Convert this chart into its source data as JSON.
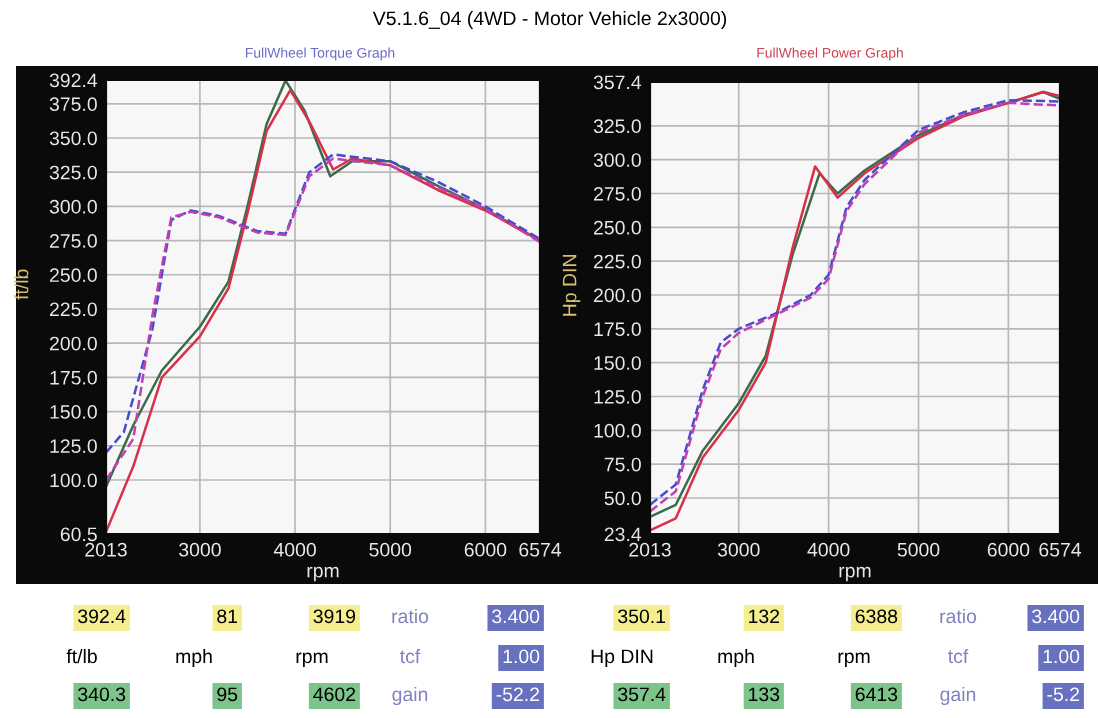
{
  "chart_data": [
    {
      "type": "line",
      "title": "V5.1.6_04 (4WD - Motor Vehicle 2x3000)",
      "subtitle": "FullWheel Torque Graph",
      "xlabel": "rpm",
      "ylabel": "ft/lb",
      "xlim": [
        2013,
        6574
      ],
      "xticks": [
        2013,
        3000,
        4000,
        5000,
        6000,
        6574
      ],
      "ylim": [
        60.5,
        392.4
      ],
      "yticks": [
        60.5,
        {
          "value": 100,
          "label": "100.0"
        },
        {
          "value": 125,
          "label": "125.0"
        },
        {
          "value": 150,
          "label": "150.0"
        },
        {
          "value": 175,
          "label": "175.0"
        },
        {
          "value": 200,
          "label": "200.0"
        },
        {
          "value": 225,
          "label": "225.0"
        },
        {
          "value": 250,
          "label": "250.0"
        },
        {
          "value": 275,
          "label": "275.0"
        },
        {
          "value": 300,
          "label": "300.0"
        },
        {
          "value": 325,
          "label": "325.0"
        },
        {
          "value": 350,
          "label": "350.0"
        },
        {
          "value": 375,
          "label": "375.0"
        },
        392.4
      ],
      "grid": true,
      "legend": false,
      "series": [
        {
          "color": "#3a6b4a",
          "line_style": "solid",
          "x": [
            2013,
            2300,
            2600,
            3000,
            3300,
            3500,
            3700,
            3900,
            4100,
            4370,
            4600,
            5000,
            5500,
            6000,
            6574
          ],
          "values": [
            95,
            140,
            180,
            212,
            245,
            300,
            360,
            392,
            370,
            322,
            333,
            333,
            315,
            298,
            275
          ]
        },
        {
          "color": "#d8304a",
          "line_style": "solid",
          "x": [
            2013,
            2300,
            2600,
            3000,
            3300,
            3500,
            3700,
            3950,
            4150,
            4400,
            4600,
            5000,
            5500,
            6000,
            6574
          ],
          "values": [
            62,
            110,
            175,
            205,
            240,
            295,
            355,
            385,
            362,
            327,
            335,
            330,
            312,
            297,
            275
          ]
        },
        {
          "color": "#4a4ad0",
          "line_style": "dashed",
          "x": [
            2013,
            2200,
            2500,
            2700,
            2900,
            3200,
            3600,
            3900,
            4150,
            4400,
            5000,
            5500,
            6000,
            6574
          ],
          "values": [
            120,
            135,
            210,
            290,
            297,
            293,
            282,
            280,
            325,
            338,
            333,
            318,
            300,
            276
          ]
        },
        {
          "color": "#c040b0",
          "line_style": "dashed",
          "x": [
            2013,
            2300,
            2500,
            2700,
            2900,
            3200,
            3600,
            3900,
            4150,
            4400,
            5000,
            5500,
            6000,
            6574
          ],
          "values": [
            100,
            130,
            220,
            292,
            296,
            292,
            281,
            279,
            322,
            335,
            330,
            314,
            298,
            274
          ]
        }
      ],
      "annotations": [
        "392.4",
        "81",
        "3919",
        "ratio",
        "3.400",
        "ft/lb",
        "mph",
        "rpm",
        "tcf",
        "1.00",
        "340.3",
        "95",
        "4602",
        "gain",
        "-52.2"
      ]
    },
    {
      "type": "line",
      "subtitle": "FullWheel Power Graph",
      "xlabel": "rpm",
      "ylabel": "Hp DIN",
      "xlim": [
        2013,
        6574
      ],
      "xticks": [
        2013,
        3000,
        4000,
        5000,
        6000,
        6574
      ],
      "ylim": [
        23.4,
        357.4
      ],
      "yticks": [
        23.4,
        {
          "value": 50,
          "label": "50.0"
        },
        {
          "value": 75,
          "label": "75.0"
        },
        {
          "value": 100,
          "label": "100.0"
        },
        {
          "value": 125,
          "label": "125.0"
        },
        {
          "value": 150,
          "label": "150.0"
        },
        {
          "value": 175,
          "label": "175.0"
        },
        {
          "value": 200,
          "label": "200.0"
        },
        {
          "value": 225,
          "label": "225.0"
        },
        {
          "value": 250,
          "label": "250.0"
        },
        {
          "value": 275,
          "label": "275.0"
        },
        {
          "value": 300,
          "label": "300.0"
        },
        {
          "value": 325,
          "label": "325.0"
        },
        357.4
      ],
      "grid": true,
      "legend": false,
      "series": [
        {
          "color": "#3a6b4a",
          "line_style": "solid",
          "x": [
            2013,
            2300,
            2600,
            3000,
            3300,
            3600,
            3900,
            4100,
            4400,
            5000,
            5500,
            6000,
            6388,
            6574
          ],
          "values": [
            36,
            45,
            85,
            120,
            155,
            230,
            290,
            275,
            292,
            318,
            333,
            342,
            350,
            345
          ]
        },
        {
          "color": "#d8304a",
          "line_style": "solid",
          "x": [
            2013,
            2300,
            2600,
            3000,
            3300,
            3600,
            3850,
            4100,
            4400,
            5000,
            5500,
            6000,
            6388,
            6574
          ],
          "values": [
            26,
            35,
            80,
            115,
            150,
            235,
            295,
            272,
            290,
            316,
            332,
            342,
            350,
            347
          ]
        },
        {
          "color": "#4a4ad0",
          "line_style": "dashed",
          "x": [
            2013,
            2300,
            2600,
            2800,
            3000,
            3400,
            3800,
            4000,
            4200,
            4400,
            5000,
            5500,
            6000,
            6574
          ],
          "values": [
            45,
            60,
            130,
            165,
            175,
            186,
            200,
            215,
            265,
            285,
            322,
            335,
            344,
            343
          ]
        },
        {
          "color": "#c040b0",
          "line_style": "dashed",
          "x": [
            2013,
            2300,
            2600,
            2800,
            3000,
            3400,
            3800,
            4000,
            4200,
            4400,
            5000,
            5500,
            6000,
            6574
          ],
          "values": [
            40,
            55,
            125,
            160,
            172,
            185,
            198,
            212,
            262,
            282,
            320,
            333,
            342,
            340
          ]
        }
      ],
      "annotations": [
        "350.1",
        "132",
        "6388",
        "ratio",
        "3.400",
        "Hp DIN",
        "mph",
        "rpm",
        "tcf",
        "1.00",
        "357.4",
        "133",
        "6413",
        "gain",
        "-5.2"
      ]
    }
  ]
}
